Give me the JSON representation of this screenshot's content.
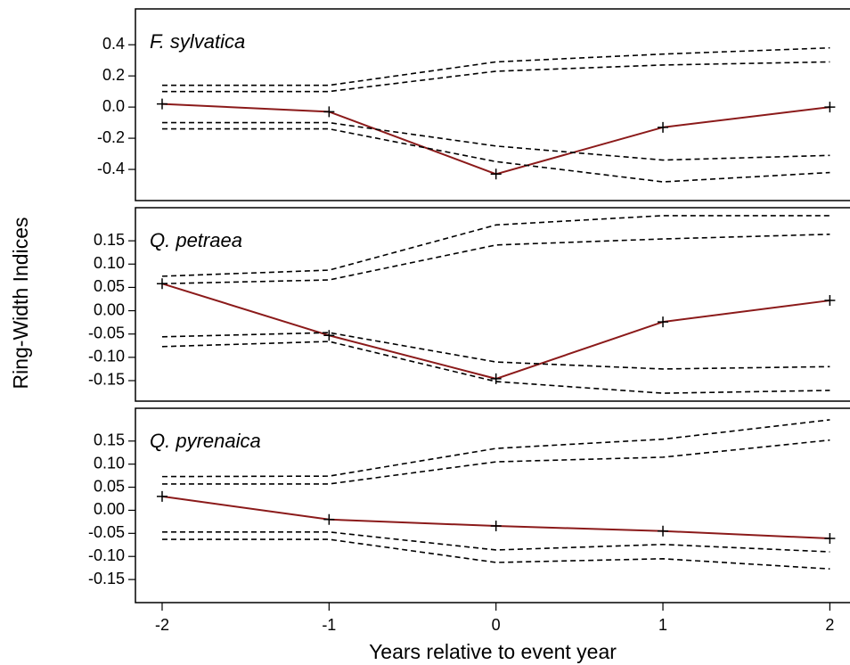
{
  "chart_data": [
    {
      "type": "line",
      "title": "F. sylvatica",
      "x": [
        -2,
        -1,
        0,
        1,
        2
      ],
      "xlim": [
        -2.16,
        2.11
      ],
      "ylim": [
        -0.6,
        0.63
      ],
      "yticks": [
        0.4,
        0.2,
        {
          "value": 0,
          "label": "0.0"
        },
        -0.2,
        -0.4
      ],
      "series": [
        {
          "color": "#8b1a1a",
          "style": "solid",
          "marker": "+",
          "values": [
            0.02,
            -0.03,
            -0.43,
            -0.13,
            0.0
          ]
        },
        {
          "color": "#000000",
          "style": "dashed",
          "values": [
            0.14,
            0.14,
            0.29,
            0.34,
            0.38
          ]
        },
        {
          "color": "#000000",
          "style": "dashed",
          "values": [
            0.1,
            0.1,
            0.23,
            0.27,
            0.29
          ]
        },
        {
          "color": "#000000",
          "style": "dashed",
          "values": [
            -0.1,
            -0.1,
            -0.25,
            -0.34,
            -0.31
          ]
        },
        {
          "color": "#000000",
          "style": "dashed",
          "values": [
            -0.14,
            -0.14,
            -0.35,
            -0.48,
            -0.42
          ]
        }
      ]
    },
    {
      "type": "line",
      "title": "Q. petraea",
      "ylabel": "Ring-Width Indices",
      "x": [
        -2,
        -1,
        0,
        1,
        2
      ],
      "xlim": [
        -2.16,
        2.11
      ],
      "ylim": [
        -0.194,
        0.221
      ],
      "yticks": [
        0.15,
        {
          "value": 0.1,
          "label": "0.10"
        },
        0.05,
        {
          "value": 0,
          "label": "0.00"
        },
        -0.05,
        {
          "value": -0.1,
          "label": "-0.10"
        },
        -0.15
      ],
      "series": [
        {
          "color": "#8b1a1a",
          "style": "solid",
          "marker": "+",
          "values": [
            0.058,
            -0.053,
            -0.146,
            -0.024,
            0.022
          ]
        },
        {
          "color": "#000000",
          "style": "dashed",
          "values": [
            0.074,
            0.087,
            0.184,
            0.204,
            0.204
          ]
        },
        {
          "color": "#000000",
          "style": "dashed",
          "values": [
            0.058,
            0.066,
            0.141,
            0.154,
            0.164
          ]
        },
        {
          "color": "#000000",
          "style": "dashed",
          "values": [
            -0.056,
            -0.047,
            -0.11,
            -0.125,
            -0.12
          ]
        },
        {
          "color": "#000000",
          "style": "dashed",
          "values": [
            -0.077,
            -0.066,
            -0.152,
            -0.177,
            -0.171
          ]
        }
      ]
    },
    {
      "type": "line",
      "title": "Q. pyrenaica",
      "xlabel": "Years relative to event year",
      "x": [
        -2,
        -1,
        0,
        1,
        2
      ],
      "xlim": [
        -2.16,
        2.11
      ],
      "xticks": [
        -2,
        -1,
        0,
        1,
        2
      ],
      "ylim": [
        -0.2,
        0.221
      ],
      "yticks": [
        0.15,
        {
          "value": 0.1,
          "label": "0.10"
        },
        0.05,
        {
          "value": 0,
          "label": "0.00"
        },
        -0.05,
        {
          "value": -0.1,
          "label": "-0.10"
        },
        -0.15
      ],
      "series": [
        {
          "color": "#8b1a1a",
          "style": "solid",
          "marker": "+",
          "values": [
            0.03,
            -0.02,
            -0.034,
            -0.045,
            -0.061
          ]
        },
        {
          "color": "#000000",
          "style": "dashed",
          "values": [
            0.073,
            0.074,
            0.134,
            0.154,
            0.196
          ]
        },
        {
          "color": "#000000",
          "style": "dashed",
          "values": [
            0.057,
            0.057,
            0.105,
            0.115,
            0.152
          ]
        },
        {
          "color": "#000000",
          "style": "dashed",
          "values": [
            -0.047,
            -0.047,
            -0.086,
            -0.074,
            -0.09
          ]
        },
        {
          "color": "#000000",
          "style": "dashed",
          "values": [
            -0.063,
            -0.063,
            -0.113,
            -0.105,
            -0.127
          ]
        }
      ]
    }
  ]
}
